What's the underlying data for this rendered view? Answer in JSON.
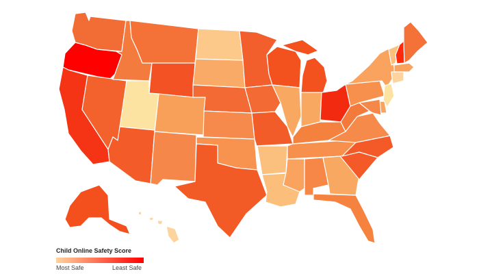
{
  "legend": {
    "title": "Child Online Safety Score",
    "low_label": "Most Safe",
    "high_label": "Least Safe",
    "gradient_start": "#fdd49e",
    "gradient_end": "#ff0000"
  },
  "regions": [
    {
      "name": "washington",
      "color": "#f26c35"
    },
    {
      "name": "oregon",
      "color": "#ff0000"
    },
    {
      "name": "california",
      "color": "#f53415"
    },
    {
      "name": "nevada",
      "color": "#f3622c"
    },
    {
      "name": "idaho",
      "color": "#f47b3e"
    },
    {
      "name": "montana",
      "color": "#f47238"
    },
    {
      "name": "wyoming",
      "color": "#f25224"
    },
    {
      "name": "utah",
      "color": "#fde3a2"
    },
    {
      "name": "arizona",
      "color": "#f35b28"
    },
    {
      "name": "colorado",
      "color": "#f8a05a"
    },
    {
      "name": "new-mexico",
      "color": "#f6874a"
    },
    {
      "name": "north-dakota",
      "color": "#fdc98a"
    },
    {
      "name": "south-dakota",
      "color": "#f9aa66"
    },
    {
      "name": "nebraska",
      "color": "#f46a34"
    },
    {
      "name": "kansas",
      "color": "#f68a4c"
    },
    {
      "name": "oklahoma",
      "color": "#f7934f"
    },
    {
      "name": "texas",
      "color": "#f25a26"
    },
    {
      "name": "minnesota",
      "color": "#f25f2c"
    },
    {
      "name": "iowa",
      "color": "#f46a34"
    },
    {
      "name": "missouri",
      "color": "#f25c29"
    },
    {
      "name": "arkansas",
      "color": "#fbc07e"
    },
    {
      "name": "louisiana",
      "color": "#fbbf7b"
    },
    {
      "name": "wisconsin",
      "color": "#f3521e"
    },
    {
      "name": "illinois",
      "color": "#f9a862"
    },
    {
      "name": "michigan",
      "color": "#f3521e"
    },
    {
      "name": "indiana",
      "color": "#f9a862"
    },
    {
      "name": "ohio",
      "color": "#f22b10"
    },
    {
      "name": "kentucky",
      "color": "#f5813f"
    },
    {
      "name": "tennessee",
      "color": "#f6904c"
    },
    {
      "name": "mississippi",
      "color": "#f9a35f"
    },
    {
      "name": "alabama",
      "color": "#f68747"
    },
    {
      "name": "georgia",
      "color": "#f9a862"
    },
    {
      "name": "florida",
      "color": "#f6823f"
    },
    {
      "name": "south-carolina",
      "color": "#f35a27"
    },
    {
      "name": "north-carolina",
      "color": "#f35a27"
    },
    {
      "name": "virginia",
      "color": "#f68a4a"
    },
    {
      "name": "west-virginia",
      "color": "#f47a3b"
    },
    {
      "name": "pennsylvania",
      "color": "#f6904c"
    },
    {
      "name": "new-york",
      "color": "#f9a35f"
    },
    {
      "name": "vermont",
      "color": "#fbc07e"
    },
    {
      "name": "new-hampshire",
      "color": "#ff2a0c"
    },
    {
      "name": "maine",
      "color": "#f47238"
    },
    {
      "name": "massachusetts",
      "color": "#f9a35f"
    },
    {
      "name": "connecticut",
      "color": "#fdd49e"
    },
    {
      "name": "new-jersey",
      "color": "#fde3a2"
    },
    {
      "name": "delaware",
      "color": "#f9a35f"
    },
    {
      "name": "maryland",
      "color": "#f6874a"
    },
    {
      "name": "alaska",
      "color": "#f3501e"
    },
    {
      "name": "hawaii",
      "color": "#fdd49e"
    }
  ]
}
